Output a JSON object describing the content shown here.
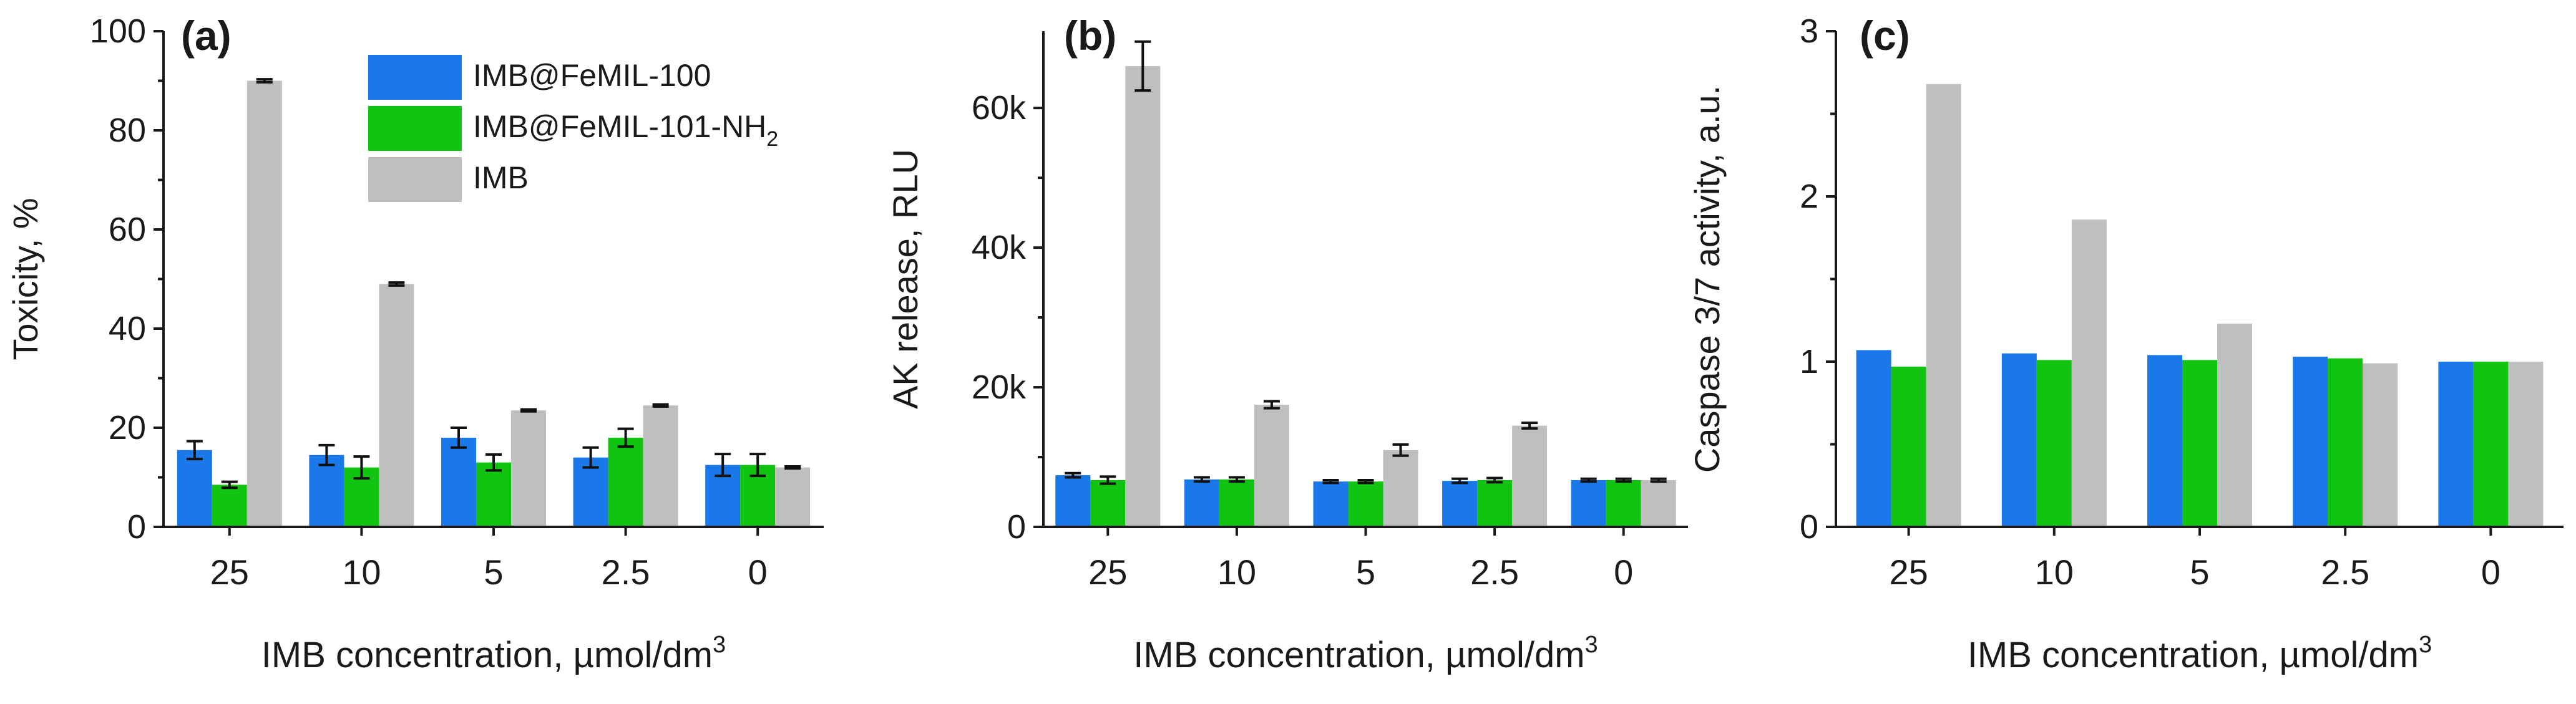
{
  "legend": [
    {
      "name": "IMB@FeMIL-100",
      "color": "#1b78e8"
    },
    {
      "name": "IMB@FeMIL-101-NH",
      "sub": "2",
      "color": "#11c411"
    },
    {
      "name": "IMB",
      "color": "#bfbfbf"
    }
  ],
  "chart_data": [
    {
      "panel": "(a)",
      "type": "bar",
      "categories": [
        "25",
        "10",
        "5",
        "2.5",
        "0"
      ],
      "xlabel": "IMB concentration, µmol/dm",
      "xlabel_sup": "3",
      "ylabel": "Toxicity, %",
      "ylim": [
        0,
        100
      ],
      "yticks": [
        0,
        20,
        40,
        60,
        80,
        100
      ],
      "ytick_labels": [
        "0",
        "20",
        "40",
        "60",
        "80",
        "100"
      ],
      "series": [
        {
          "name": "IMB@FeMIL-100",
          "values": [
            15.5,
            14.5,
            18,
            14,
            12.5
          ],
          "errors": [
            1.8,
            2,
            2,
            2,
            2.2
          ]
        },
        {
          "name": "IMB@FeMIL-101-NH2",
          "values": [
            8.5,
            12,
            13,
            18,
            12.5
          ],
          "errors": [
            0.6,
            2.2,
            1.6,
            1.8,
            2.2
          ]
        },
        {
          "name": "IMB",
          "values": [
            90,
            49,
            23.5,
            24.5,
            12
          ],
          "errors": [
            0.3,
            0.3,
            0.2,
            0.2,
            0.2
          ]
        }
      ]
    },
    {
      "panel": "(b)",
      "type": "bar",
      "categories": [
        "25",
        "10",
        "5",
        "2.5",
        "0"
      ],
      "xlabel": "IMB concentration, µmol/dm",
      "xlabel_sup": "3",
      "ylabel": "AK release, RLU",
      "ylim": [
        0,
        71000
      ],
      "yticks": [
        0,
        20000,
        40000,
        60000
      ],
      "ytick_labels": [
        "0",
        "20k",
        "40k",
        "60k"
      ],
      "series": [
        {
          "name": "IMB@FeMIL-100",
          "values": [
            7400,
            6800,
            6500,
            6600,
            6700
          ],
          "errors": [
            300,
            300,
            200,
            300,
            200
          ]
        },
        {
          "name": "IMB@FeMIL-101-NH2",
          "values": [
            6700,
            6800,
            6500,
            6700,
            6700
          ],
          "errors": [
            500,
            300,
            200,
            300,
            200
          ]
        },
        {
          "name": "IMB",
          "values": [
            66000,
            17500,
            11000,
            14500,
            6700
          ],
          "errors": [
            3500,
            500,
            800,
            400,
            200
          ]
        }
      ]
    },
    {
      "panel": "(c)",
      "type": "bar",
      "categories": [
        "25",
        "10",
        "5",
        "2.5",
        "0"
      ],
      "xlabel": "IMB concentration, µmol/dm",
      "xlabel_sup": "3",
      "ylabel": "Caspase 3/7 activity, a.u.",
      "ylim": [
        0,
        3
      ],
      "yticks": [
        0,
        1,
        2,
        3
      ],
      "ytick_labels": [
        "0",
        "1",
        "2",
        "3"
      ],
      "series": [
        {
          "name": "IMB@FeMIL-100",
          "values": [
            1.07,
            1.05,
            1.04,
            1.03,
            1.0
          ]
        },
        {
          "name": "IMB@FeMIL-101-NH2",
          "values": [
            0.97,
            1.01,
            1.01,
            1.02,
            1.0
          ]
        },
        {
          "name": "IMB",
          "values": [
            2.68,
            1.86,
            1.23,
            0.99,
            1.0
          ]
        }
      ]
    }
  ]
}
